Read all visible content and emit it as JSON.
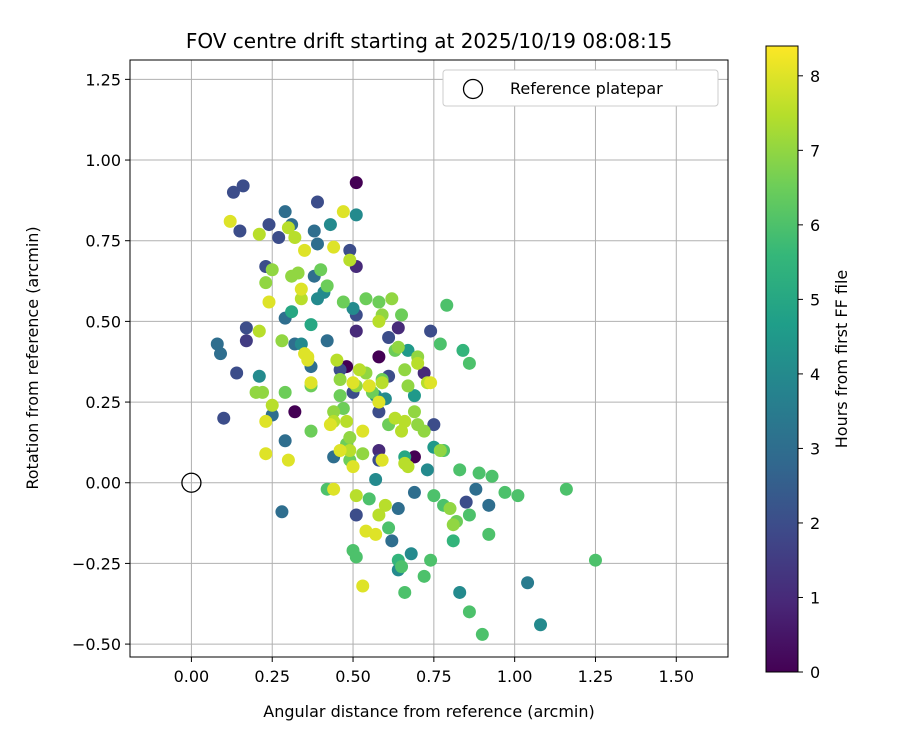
{
  "chart_data": {
    "type": "scatter",
    "title": "FOV centre drift starting at 2025/10/19 08:08:15",
    "xlabel": "Angular distance from reference (arcmin)",
    "ylabel": "Rotation from reference (arcmin)",
    "xlim": [
      -0.19,
      1.66
    ],
    "ylim": [
      -0.54,
      1.31
    ],
    "xticks": [
      0.0,
      0.25,
      0.5,
      0.75,
      1.0,
      1.25,
      1.5
    ],
    "xtick_labels": [
      "0.00",
      "0.25",
      "0.50",
      "0.75",
      "1.00",
      "1.25",
      "1.50"
    ],
    "yticks": [
      -0.5,
      -0.25,
      0.0,
      0.25,
      0.5,
      0.75,
      1.0,
      1.25
    ],
    "ytick_labels": [
      "−0.50",
      "−0.25",
      "0.00",
      "0.25",
      "0.50",
      "0.75",
      "1.00",
      "1.25"
    ],
    "grid": true,
    "legend": {
      "placement": "top-right",
      "entries": [
        "Reference platepar"
      ]
    },
    "reference_point": {
      "x": 0.0,
      "y": 0.0,
      "marker": "hollow-circle"
    },
    "colorbar": {
      "label": "Hours from first FF file",
      "range": [
        0,
        8.4
      ],
      "ticks": [
        0,
        1,
        2,
        3,
        4,
        5,
        6,
        7,
        8
      ],
      "colormap": "viridis",
      "stops": [
        "#440154",
        "#482878",
        "#3e4989",
        "#31688e",
        "#26828e",
        "#1f9e89",
        "#35b779",
        "#6ece58",
        "#b5de2b",
        "#fde725"
      ]
    },
    "points": [
      [
        0.51,
        0.93,
        0.0
      ],
      [
        0.58,
        0.39,
        0.0
      ],
      [
        0.48,
        0.36,
        0.0
      ],
      [
        0.32,
        0.22,
        0.0
      ],
      [
        0.69,
        0.08,
        0.0
      ],
      [
        0.51,
        0.67,
        1.0
      ],
      [
        0.51,
        0.47,
        1.0
      ],
      [
        0.72,
        0.34,
        1.0
      ],
      [
        0.58,
        0.1,
        1.0
      ],
      [
        0.64,
        0.48,
        1.0
      ],
      [
        0.17,
        0.44,
        1.5
      ],
      [
        0.13,
        0.9,
        2.0
      ],
      [
        0.16,
        0.92,
        2.0
      ],
      [
        0.15,
        0.78,
        2.0
      ],
      [
        0.24,
        0.8,
        2.0
      ],
      [
        0.27,
        0.76,
        2.0
      ],
      [
        0.39,
        0.87,
        2.0
      ],
      [
        0.49,
        0.72,
        2.0
      ],
      [
        0.51,
        0.52,
        2.0
      ],
      [
        0.46,
        0.35,
        2.0
      ],
      [
        0.17,
        0.48,
        2.0
      ],
      [
        0.14,
        0.34,
        2.0
      ],
      [
        0.1,
        0.2,
        2.0
      ],
      [
        0.23,
        0.67,
        2.0
      ],
      [
        0.61,
        0.45,
        2.0
      ],
      [
        0.5,
        0.28,
        2.0
      ],
      [
        0.58,
        0.22,
        2.0
      ],
      [
        0.75,
        0.18,
        2.0
      ],
      [
        0.74,
        0.47,
        2.0
      ],
      [
        0.61,
        0.33,
        2.0
      ],
      [
        0.85,
        -0.06,
        2.0
      ],
      [
        0.51,
        -0.1,
        2.0
      ],
      [
        0.58,
        0.07,
        2.0
      ],
      [
        0.09,
        0.4,
        3.0
      ],
      [
        0.08,
        0.43,
        3.0
      ],
      [
        0.29,
        0.84,
        3.0
      ],
      [
        0.31,
        0.8,
        3.0
      ],
      [
        0.38,
        0.78,
        3.0
      ],
      [
        0.39,
        0.74,
        3.0
      ],
      [
        0.29,
        0.51,
        3.0
      ],
      [
        0.32,
        0.43,
        3.0
      ],
      [
        0.37,
        0.36,
        3.0
      ],
      [
        0.42,
        0.44,
        3.0
      ],
      [
        0.25,
        0.21,
        3.0
      ],
      [
        0.29,
        0.13,
        3.0
      ],
      [
        0.28,
        -0.09,
        3.0
      ],
      [
        0.44,
        0.08,
        3.0
      ],
      [
        0.38,
        0.64,
        3.0
      ],
      [
        0.64,
        -0.08,
        3.0
      ],
      [
        0.62,
        -0.18,
        3.0
      ],
      [
        0.69,
        -0.03,
        3.0
      ],
      [
        0.88,
        -0.02,
        3.0
      ],
      [
        0.92,
        -0.07,
        3.0
      ],
      [
        1.04,
        -0.31,
        3.5
      ],
      [
        1.08,
        -0.44,
        4.0
      ],
      [
        0.51,
        0.83,
        4.0
      ],
      [
        0.43,
        0.8,
        4.0
      ],
      [
        0.39,
        0.57,
        4.0
      ],
      [
        0.41,
        0.59,
        4.0
      ],
      [
        0.21,
        0.33,
        4.0
      ],
      [
        0.34,
        0.43,
        4.0
      ],
      [
        0.5,
        0.54,
        4.0
      ],
      [
        0.57,
        0.27,
        4.0
      ],
      [
        0.6,
        0.26,
        4.0
      ],
      [
        0.57,
        0.01,
        4.0
      ],
      [
        0.64,
        -0.27,
        4.0
      ],
      [
        0.68,
        -0.22,
        4.0
      ],
      [
        0.73,
        0.04,
        4.0
      ],
      [
        0.83,
        -0.34,
        4.0
      ],
      [
        0.67,
        0.41,
        4.5
      ],
      [
        0.69,
        0.27,
        4.5
      ],
      [
        0.75,
        0.11,
        4.5
      ],
      [
        0.37,
        0.49,
        5.0
      ],
      [
        0.31,
        0.53,
        5.0
      ],
      [
        0.66,
        0.08,
        5.0
      ],
      [
        0.64,
        -0.24,
        5.5
      ],
      [
        0.81,
        -0.18,
        5.5
      ],
      [
        0.84,
        0.41,
        5.5
      ],
      [
        0.86,
        0.37,
        6.0
      ],
      [
        0.79,
        0.55,
        6.0
      ],
      [
        0.77,
        0.43,
        6.0
      ],
      [
        0.78,
        0.1,
        6.0
      ],
      [
        0.75,
        -0.04,
        6.0
      ],
      [
        0.83,
        0.04,
        6.0
      ],
      [
        0.78,
        -0.07,
        6.0
      ],
      [
        0.74,
        -0.24,
        6.0
      ],
      [
        0.72,
        -0.29,
        6.0
      ],
      [
        0.66,
        -0.34,
        6.0
      ],
      [
        0.86,
        -0.4,
        6.0
      ],
      [
        0.9,
        -0.47,
        6.0
      ],
      [
        0.89,
        0.03,
        6.0
      ],
      [
        0.93,
        0.02,
        6.0
      ],
      [
        0.97,
        -0.03,
        6.0
      ],
      [
        1.01,
        -0.04,
        6.0
      ],
      [
        1.16,
        -0.02,
        6.0
      ],
      [
        1.25,
        -0.24,
        6.0
      ],
      [
        0.92,
        -0.16,
        6.0
      ],
      [
        0.86,
        -0.1,
        6.0
      ],
      [
        0.82,
        -0.12,
        6.5
      ],
      [
        0.42,
        -0.02,
        6.0
      ],
      [
        0.5,
        -0.21,
        6.0
      ],
      [
        0.51,
        -0.23,
        6.0
      ],
      [
        0.55,
        -0.05,
        6.0
      ],
      [
        0.61,
        -0.14,
        6.0
      ],
      [
        0.65,
        -0.26,
        6.0
      ],
      [
        0.48,
        0.12,
        6.5
      ],
      [
        0.49,
        0.07,
        6.5
      ],
      [
        0.46,
        0.27,
        6.5
      ],
      [
        0.47,
        0.23,
        6.5
      ],
      [
        0.56,
        0.28,
        6.5
      ],
      [
        0.59,
        0.32,
        6.5
      ],
      [
        0.61,
        0.18,
        6.5
      ],
      [
        0.63,
        0.41,
        6.5
      ],
      [
        0.65,
        0.52,
        6.5
      ],
      [
        0.58,
        0.56,
        6.5
      ],
      [
        0.54,
        0.57,
        6.5
      ],
      [
        0.47,
        0.56,
        6.5
      ],
      [
        0.42,
        0.61,
        6.5
      ],
      [
        0.4,
        0.66,
        6.5
      ],
      [
        0.37,
        0.3,
        6.5
      ],
      [
        0.37,
        0.16,
        6.5
      ],
      [
        0.29,
        0.28,
        6.5
      ],
      [
        0.33,
        0.65,
        7.0
      ],
      [
        0.28,
        0.44,
        7.0
      ],
      [
        0.25,
        0.66,
        7.0
      ],
      [
        0.22,
        0.28,
        7.0
      ],
      [
        0.2,
        0.28,
        7.0
      ],
      [
        0.23,
        0.62,
        7.0
      ],
      [
        0.31,
        0.64,
        7.0
      ],
      [
        0.44,
        0.22,
        7.0
      ],
      [
        0.46,
        0.32,
        7.0
      ],
      [
        0.49,
        0.14,
        7.0
      ],
      [
        0.51,
        0.3,
        7.0
      ],
      [
        0.53,
        0.09,
        7.0
      ],
      [
        0.54,
        0.34,
        7.0
      ],
      [
        0.59,
        0.52,
        7.0
      ],
      [
        0.62,
        0.57,
        7.0
      ],
      [
        0.64,
        0.42,
        7.0
      ],
      [
        0.66,
        0.35,
        7.0
      ],
      [
        0.67,
        0.3,
        7.0
      ],
      [
        0.69,
        0.22,
        7.0
      ],
      [
        0.7,
        0.18,
        7.0
      ],
      [
        0.7,
        0.39,
        7.0
      ],
      [
        0.72,
        0.16,
        7.0
      ],
      [
        0.77,
        0.1,
        7.0
      ],
      [
        0.8,
        -0.08,
        7.0
      ],
      [
        0.81,
        -0.13,
        7.0
      ],
      [
        0.73,
        0.31,
        7.5
      ],
      [
        0.7,
        0.37,
        7.5
      ],
      [
        0.66,
        0.19,
        7.5
      ],
      [
        0.65,
        0.16,
        7.5
      ],
      [
        0.63,
        0.2,
        7.5
      ],
      [
        0.66,
        0.06,
        7.5
      ],
      [
        0.67,
        0.05,
        7.5
      ],
      [
        0.6,
        -0.07,
        7.5
      ],
      [
        0.58,
        -0.1,
        7.5
      ],
      [
        0.51,
        -0.04,
        7.5
      ],
      [
        0.49,
        0.1,
        7.5
      ],
      [
        0.48,
        0.19,
        7.5
      ],
      [
        0.44,
        0.19,
        7.5
      ],
      [
        0.45,
        0.38,
        7.5
      ],
      [
        0.52,
        0.35,
        7.5
      ],
      [
        0.59,
        0.31,
        7.5
      ],
      [
        0.55,
        0.3,
        7.5
      ],
      [
        0.49,
        0.69,
        7.5
      ],
      [
        0.21,
        0.77,
        7.5
      ],
      [
        0.21,
        0.47,
        7.5
      ],
      [
        0.25,
        0.24,
        7.5
      ],
      [
        0.3,
        0.79,
        7.5
      ],
      [
        0.34,
        0.57,
        7.5
      ],
      [
        0.58,
        0.5,
        7.5
      ],
      [
        0.32,
        0.76,
        7.5
      ],
      [
        0.47,
        0.84,
        8.0
      ],
      [
        0.44,
        0.73,
        8.0
      ],
      [
        0.35,
        0.72,
        8.0
      ],
      [
        0.34,
        0.6,
        8.0
      ],
      [
        0.24,
        0.56,
        8.0
      ],
      [
        0.23,
        0.19,
        8.0
      ],
      [
        0.23,
        0.09,
        8.0
      ],
      [
        0.3,
        0.07,
        8.0
      ],
      [
        0.36,
        0.39,
        8.0
      ],
      [
        0.37,
        0.31,
        8.0
      ],
      [
        0.43,
        0.18,
        8.0
      ],
      [
        0.46,
        0.1,
        8.0
      ],
      [
        0.5,
        0.05,
        8.0
      ],
      [
        0.53,
        0.16,
        8.0
      ],
      [
        0.5,
        0.31,
        8.0
      ],
      [
        0.55,
        0.3,
        8.0
      ],
      [
        0.58,
        0.25,
        8.0
      ],
      [
        0.54,
        -0.15,
        8.0
      ],
      [
        0.57,
        -0.16,
        8.0
      ],
      [
        0.53,
        -0.32,
        8.0
      ],
      [
        0.44,
        -0.02,
        8.0
      ],
      [
        0.59,
        0.07,
        8.0
      ],
      [
        0.35,
        0.4,
        8.0
      ],
      [
        0.36,
        0.38,
        8.0
      ],
      [
        0.12,
        0.81,
        8.0
      ],
      [
        0.74,
        0.31,
        8.0
      ]
    ]
  }
}
